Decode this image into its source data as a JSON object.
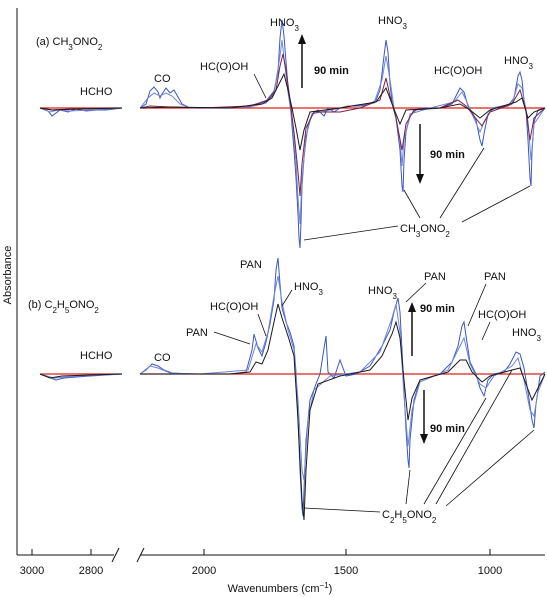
{
  "chart_data": {
    "type": "line",
    "xlabel": "Wavenumbers (cm",
    "xlabel_sup": "−1",
    "xlabel_close": ")",
    "ylabel": "Absorbance",
    "x_ticks": [
      "3000",
      "2800",
      "2000",
      "1500",
      "1000"
    ],
    "x_reversed": true,
    "x_break": true,
    "panels": [
      {
        "id": "a",
        "title_pre": "(a) CH",
        "title_sub1": "3",
        "title_mid": "ONO",
        "title_sub2": "2",
        "time_label_up": "90 min",
        "time_label_down": "90 min",
        "band_labels": {
          "hcho": "HCHO",
          "co": "CO",
          "hcooh_1": "HC(O)OH",
          "hno3_1": "HNO",
          "hno3_1_sub": "3",
          "hno3_2": "HNO",
          "hno3_2_sub": "3",
          "hcooh_2": "HC(O)OH",
          "hno3_3": "HNO",
          "hno3_3_sub": "3"
        },
        "nitrate_label_pre": "CH",
        "nitrate_label_sub1": "3",
        "nitrate_label_mid": "ONO",
        "nitrate_label_sub2": "2"
      },
      {
        "id": "b",
        "title_pre": "(b) C",
        "title_sub1": "2",
        "title_mid": "H",
        "title_sub2": "5",
        "title_mid2": "ONO",
        "title_sub3": "2",
        "time_label_up": "90 min",
        "time_label_down": "90 min",
        "band_labels": {
          "hcho": "HCHO",
          "co": "CO",
          "pan_1": "PAN",
          "hcooh_1": "HC(O)OH",
          "pan_2": "PAN",
          "hno3_1": "HNO",
          "hno3_1_sub": "3",
          "hno3_2": "HNO",
          "hno3_2_sub": "3",
          "pan_3": "PAN",
          "pan_4": "PAN",
          "hcooh_2": "HC(O)OH",
          "hno3_3": "HNO",
          "hno3_3_sub": "3"
        },
        "nitrate_label_pre": "C",
        "nitrate_label_sub1": "2",
        "nitrate_label_mid": "H",
        "nitrate_label_sub2": "5",
        "nitrate_label_mid2": "ONO",
        "nitrate_label_sub3": "2"
      }
    ],
    "series_colors": [
      "#1a1a1a",
      "#7a1f4a",
      "#3b57c4",
      "#6f86d6",
      "#e0201a"
    ]
  }
}
